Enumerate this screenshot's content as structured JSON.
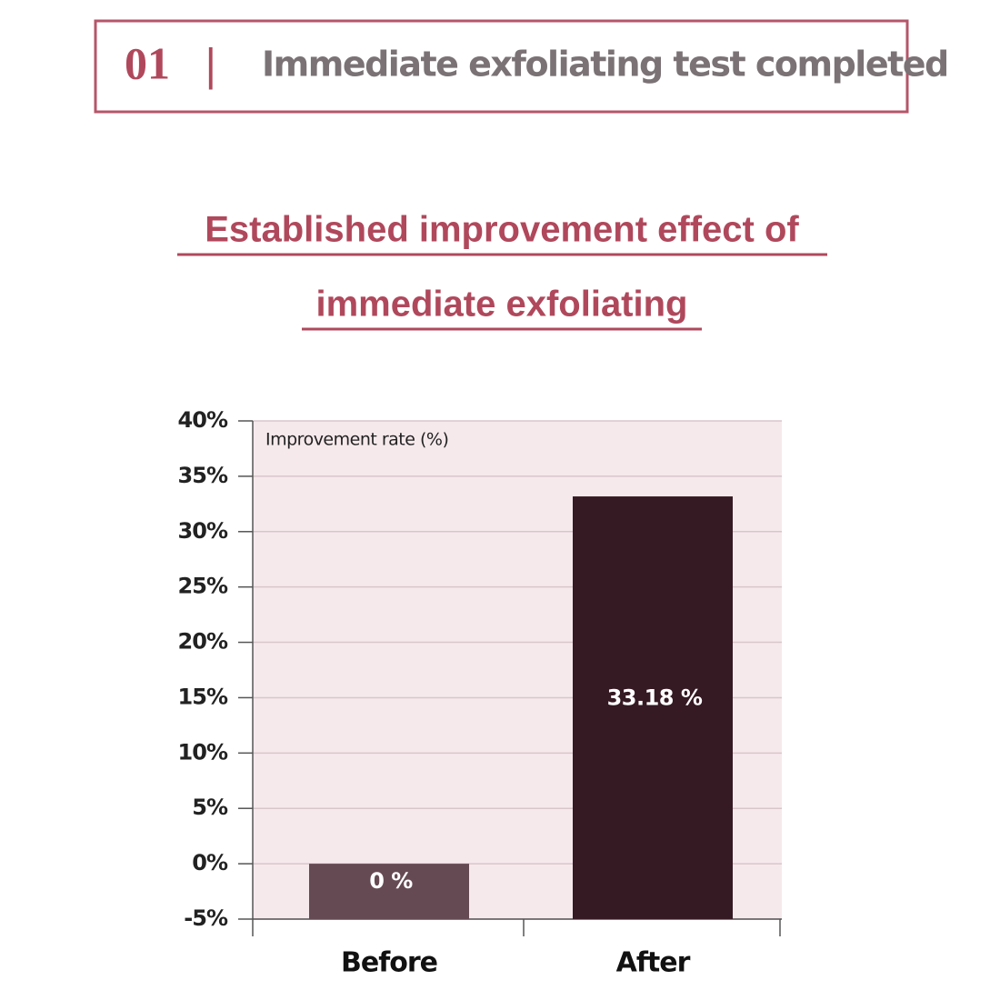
{
  "header": {
    "number": "01",
    "separator": "|",
    "title": "Immediate exfoliating test completed"
  },
  "chart_data": {
    "type": "bar",
    "title": [
      "Established improvement effect of",
      "immediate exfoliating"
    ],
    "y_label": "Improvement rate (%)",
    "categories": [
      "Before",
      "After"
    ],
    "values": [
      0,
      33.18
    ],
    "value_labels": [
      "0 %",
      "33.18 %"
    ],
    "colors": [
      "#664a53",
      "#351923"
    ],
    "ylim": [
      -5,
      40
    ],
    "yticks": [
      {
        "value": -5,
        "label": "-5%"
      },
      {
        "value": 0,
        "label": "0%"
      },
      {
        "value": 5,
        "label": "5%"
      },
      {
        "value": 10,
        "label": "10%"
      },
      {
        "value": 15,
        "label": "15%"
      },
      {
        "value": 20,
        "label": "20%"
      },
      {
        "value": 25,
        "label": "25%"
      },
      {
        "value": 30,
        "label": "30%"
      },
      {
        "value": 35,
        "label": "35%"
      },
      {
        "value": 40,
        "label": "40%"
      }
    ],
    "grid": true
  }
}
